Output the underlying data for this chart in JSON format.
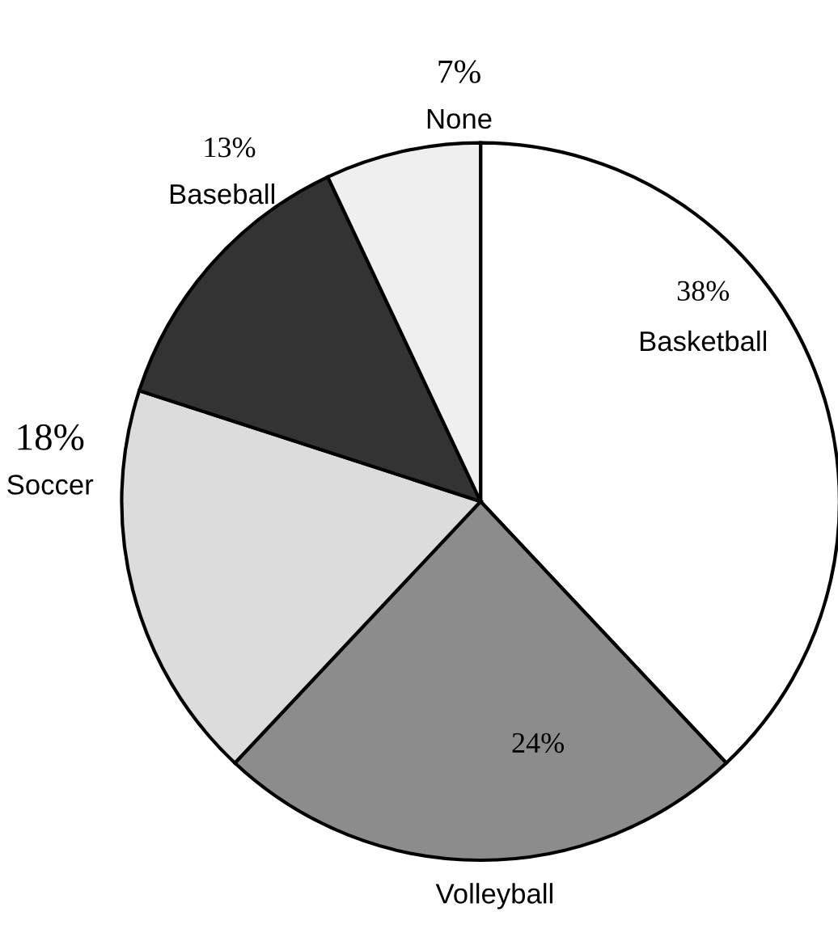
{
  "chart_data": {
    "type": "pie",
    "categories": [
      "Basketball",
      "Volleyball",
      "Soccer",
      "Baseball",
      "None"
    ],
    "values": [
      38,
      24,
      18,
      13,
      7
    ],
    "value_labels": [
      "38%",
      "24%",
      "18%",
      "13%",
      "7%"
    ],
    "colors": [
      "#ffffff",
      "#8c8c8c",
      "#dcdcdc",
      "#333333",
      "#efefef"
    ]
  }
}
